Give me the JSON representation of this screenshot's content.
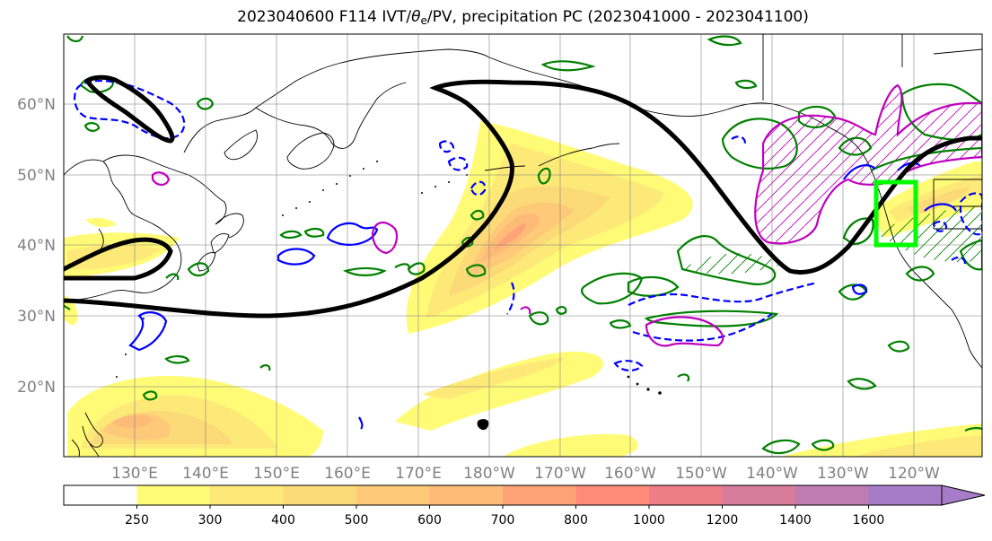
{
  "title": {
    "prefix": "2023040600 F114 IVT/",
    "theta": "θ",
    "theta_sub": "e",
    "suffix": "/PV, precipitation PC (2023041000 - 2023041100)"
  },
  "lat_labels": [
    "60°N",
    "50°N",
    "40°N",
    "30°N",
    "20°N"
  ],
  "lon_labels": [
    "130°E",
    "140°E",
    "150°E",
    "160°E",
    "170°E",
    "180°W",
    "170°W",
    "160°W",
    "150°W",
    "140°W",
    "130°W",
    "120°W"
  ],
  "colorbar": {
    "ticks": [
      "250",
      "300",
      "400",
      "500",
      "600",
      "700",
      "800",
      "1000",
      "1200",
      "1400",
      "1600"
    ],
    "colors": [
      "#ffffff",
      "#fffb77",
      "#fde978",
      "#fdda78",
      "#fec978",
      "#febb78",
      "#fea278",
      "#fe8a78",
      "#ee7d87",
      "#d87c9c",
      "#c07cb2",
      "#a67cc8"
    ]
  },
  "colors": {
    "pv_contour": "#000000",
    "theta_e_positive": "#008000",
    "theta_e_negative": "#0000ff",
    "precip_pc": "#bf00bf",
    "target_box": "#00ff00",
    "coastline": "#000000",
    "gridline": "#808080"
  }
}
